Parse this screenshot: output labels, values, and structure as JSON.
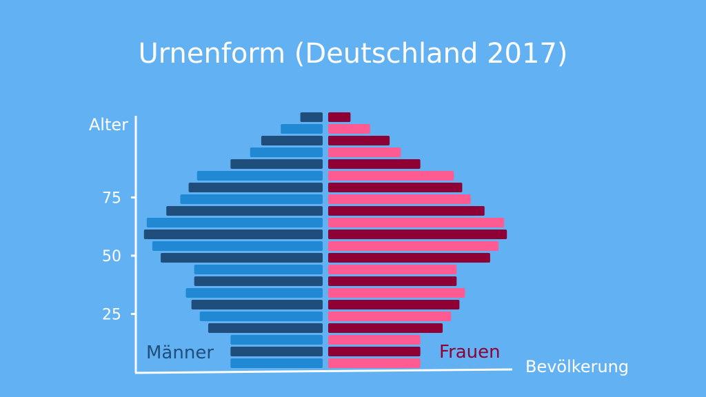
{
  "chart_data": {
    "type": "bar",
    "orientation": "horizontal",
    "title": "Urnenform (Deutschland 2017)",
    "ylabel": "Alter",
    "xlabel": "Bevölkerung",
    "yticks": [
      {
        "value": 25,
        "label": "25"
      },
      {
        "value": 50,
        "label": "50"
      },
      {
        "value": 75,
        "label": "75"
      }
    ],
    "ylim": [
      0,
      105
    ],
    "xlim": [
      0,
      7
    ],
    "legend": {
      "left": "Männer",
      "right": "Frauen"
    },
    "series": [
      {
        "name": "Männer",
        "colors": [
          "#2188d4",
          "#1f4e7d"
        ],
        "values": [
          3.3,
          3.3,
          3.3,
          4.1,
          4.4,
          4.7,
          4.9,
          4.6,
          4.6,
          5.8,
          6.1,
          6.4,
          6.3,
          5.6,
          5.1,
          4.8,
          4.5,
          3.3,
          2.6,
          2.2,
          1.5,
          0.8
        ]
      },
      {
        "name": "Frauen",
        "colors": [
          "#ff5b93",
          "#8f0035"
        ],
        "values": [
          3.3,
          3.3,
          3.3,
          4.1,
          4.4,
          4.7,
          4.9,
          4.6,
          4.6,
          5.8,
          6.1,
          6.4,
          6.3,
          5.6,
          5.1,
          4.8,
          4.5,
          3.3,
          2.6,
          2.2,
          1.5,
          0.8
        ]
      }
    ],
    "age_groups": [
      2.5,
      7.5,
      12.5,
      17.5,
      22.5,
      27.5,
      32.5,
      37.5,
      42.5,
      47.5,
      52.5,
      57.5,
      62.5,
      67.5,
      72.5,
      77.5,
      82.5,
      87.5,
      92.5,
      97.5,
      102.5,
      107.5
    ]
  },
  "colors": {
    "background": "#62b1f3",
    "axis": "#ffffff",
    "text": "#ffffff",
    "maenner_label": "#1f4e7d",
    "frauen_label": "#8f0035"
  }
}
